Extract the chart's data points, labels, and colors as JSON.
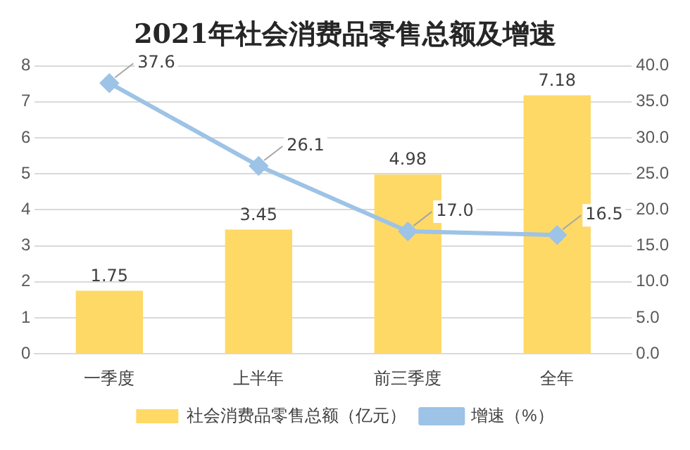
{
  "chart_data": {
    "type": "bar",
    "title": "2021年社会消费品零售总额及增速",
    "categories": [
      "一季度",
      "上半年",
      "前三季度",
      "全年"
    ],
    "series": [
      {
        "name": "社会消费品零售总额（亿元）",
        "color": "#ffd966",
        "values": [
          1.75,
          3.45,
          4.98,
          7.18
        ],
        "value_labels": [
          "1.75",
          "3.45",
          "4.98",
          "7.18"
        ]
      },
      {
        "type": "line",
        "name": "增速（%）",
        "color": "#9dc3e6",
        "axis": "y2",
        "marker": "diamond",
        "values": [
          37.6,
          26.1,
          17.0,
          16.5
        ],
        "value_labels": [
          "37.6",
          "26.1",
          "17.0",
          "16.5"
        ]
      }
    ],
    "ylim": [
      0,
      8
    ],
    "yticks": [
      0,
      1,
      2,
      3,
      4,
      5,
      6,
      7,
      8
    ],
    "y2lim": [
      0,
      40
    ],
    "y2ticks": [
      {
        "value": 0,
        "label": "0.0"
      },
      {
        "value": 5,
        "label": "5.0"
      },
      {
        "value": 10,
        "label": "10.0"
      },
      {
        "value": 15,
        "label": "15.0"
      },
      {
        "value": 20,
        "label": "20.0"
      },
      {
        "value": 25,
        "label": "25.0"
      },
      {
        "value": 30,
        "label": "30.0"
      },
      {
        "value": 35,
        "label": "35.0"
      },
      {
        "value": 40,
        "label": "40.0"
      }
    ],
    "grid": "y",
    "legend": "bottom"
  }
}
